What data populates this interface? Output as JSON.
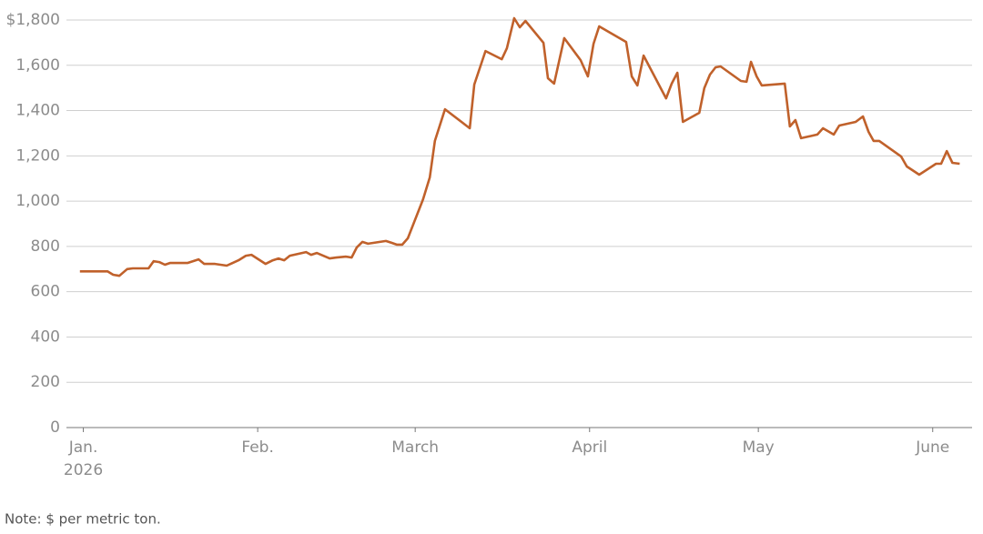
{
  "chart_data": {
    "type": "line",
    "note": "Note: $ per metric ton.",
    "x_year_label": "2026",
    "xlim": [
      -3,
      158
    ],
    "xticks": [
      {
        "value": 0,
        "label": "Jan."
      },
      {
        "value": 31,
        "label": "Feb."
      },
      {
        "value": 59,
        "label": "March"
      },
      {
        "value": 90,
        "label": "April"
      },
      {
        "value": 120,
        "label": "May"
      },
      {
        "value": 151,
        "label": "June"
      }
    ],
    "ylim": [
      0,
      1800
    ],
    "yticks": [
      0,
      200,
      400,
      600,
      800,
      {
        "value": 1000,
        "label": "1,000"
      },
      {
        "value": 1200,
        "label": "1,200"
      },
      {
        "value": 1400,
        "label": "1,400"
      },
      {
        "value": 1600,
        "label": "1,600"
      },
      {
        "value": 1800,
        "label": "$1,800"
      }
    ],
    "grid": true,
    "color": "#c0612b",
    "x": [
      -0.6,
      4.3,
      5.3,
      6.4,
      7.8,
      8.8,
      11.6,
      12.5,
      13.5,
      14.5,
      15.4,
      18.5,
      19.5,
      20.5,
      21.5,
      23.4,
      25.5,
      27.6,
      28.9,
      29.9,
      32.4,
      33.7,
      34.7,
      35.7,
      36.7,
      39.6,
      40.5,
      41.5,
      43.8,
      45.0,
      46.7,
      47.7,
      48.6,
      49.6,
      50.6,
      53.8,
      54.8,
      55.7,
      56.7,
      57.7,
      60.4,
      61.6,
      62.5,
      64.3,
      68.7,
      69.5,
      71.5,
      74.4,
      75.3,
      76.6,
      77.6,
      78.6,
      81.8,
      82.6,
      83.7,
      85.5,
      88.4,
      89.7,
      90.7,
      91.7,
      96.5,
      97.5,
      98.5,
      99.6,
      103.6,
      104.6,
      105.6,
      106.6,
      109.5,
      110.4,
      111.4,
      112.4,
      113.3,
      116.9,
      117.9,
      118.7,
      119.7,
      120.6,
      124.7,
      125.6,
      126.6,
      127.6,
      130.5,
      131.5,
      133.4,
      134.4,
      137.3,
      138.6,
      139.6,
      140.5,
      141.5,
      145.4,
      146.4,
      148.6,
      151.6,
      152.5,
      153.5,
      154.5,
      155.8
    ],
    "values": [
      690,
      690,
      675,
      670,
      700,
      703,
      703,
      735,
      731,
      719,
      727,
      727,
      735,
      743,
      723,
      723,
      715,
      739,
      759,
      763,
      723,
      739,
      747,
      739,
      759,
      775,
      763,
      771,
      747,
      751,
      755,
      751,
      795,
      820,
      812,
      824,
      816,
      808,
      808,
      836,
      1008,
      1105,
      1266,
      1406,
      1322,
      1515,
      1663,
      1627,
      1675,
      1808,
      1768,
      1796,
      1699,
      1543,
      1519,
      1720,
      1623,
      1551,
      1695,
      1772,
      1703,
      1551,
      1511,
      1643,
      1454,
      1519,
      1567,
      1350,
      1390,
      1499,
      1559,
      1591,
      1595,
      1531,
      1527,
      1615,
      1551,
      1511,
      1519,
      1330,
      1358,
      1278,
      1294,
      1322,
      1294,
      1334,
      1350,
      1374,
      1306,
      1266,
      1266,
      1197,
      1153,
      1117,
      1165,
      1165,
      1221,
      1169,
      1165
    ]
  }
}
